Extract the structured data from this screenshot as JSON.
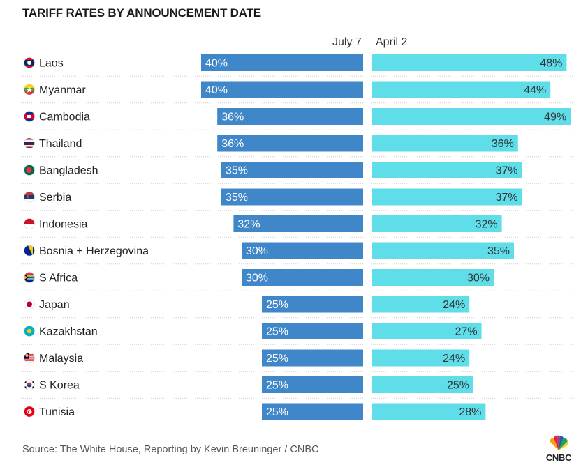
{
  "title": "TARIFF RATES BY ANNOUNCEMENT DATE",
  "source": "Source: The White House, Reporting by Kevin Breuninger / CNBC",
  "logo_text": "CNBC",
  "colors": {
    "july": "#3f87c9",
    "april": "#5fdeea",
    "text_dark": "#222222"
  },
  "chart_data": {
    "type": "bar",
    "categories": [
      "Laos",
      "Myanmar",
      "Cambodia",
      "Thailand",
      "Bangladesh",
      "Serbia",
      "Indonesia",
      "Bosnia + Herzegovina",
      "S Africa",
      "Japan",
      "Kazakhstan",
      "Malaysia",
      "S Korea",
      "Tunisia"
    ],
    "flag_icons": [
      "laos-flag-icon",
      "myanmar-flag-icon",
      "cambodia-flag-icon",
      "thailand-flag-icon",
      "bangladesh-flag-icon",
      "serbia-flag-icon",
      "indonesia-flag-icon",
      "bosnia-flag-icon",
      "south-africa-flag-icon",
      "japan-flag-icon",
      "kazakhstan-flag-icon",
      "malaysia-flag-icon",
      "south-korea-flag-icon",
      "tunisia-flag-icon"
    ],
    "series": [
      {
        "name": "July 7",
        "values": [
          40,
          40,
          36,
          36,
          35,
          35,
          32,
          30,
          30,
          25,
          25,
          25,
          25,
          25
        ],
        "labels": [
          "40%",
          "40%",
          "36%",
          "36%",
          "35%",
          "35%",
          "32%",
          "30%",
          "30%",
          "25%",
          "25%",
          "25%",
          "25%",
          "25%"
        ]
      },
      {
        "name": "April 2",
        "values": [
          48,
          44,
          49,
          36,
          37,
          37,
          32,
          35,
          30,
          24,
          27,
          24,
          25,
          28
        ],
        "labels": [
          "48%",
          "44%",
          "49%",
          "36%",
          "37%",
          "37%",
          "32%",
          "35%",
          "30%",
          "24%",
          "27%",
          "24%",
          "25%",
          "28%"
        ]
      }
    ]
  }
}
